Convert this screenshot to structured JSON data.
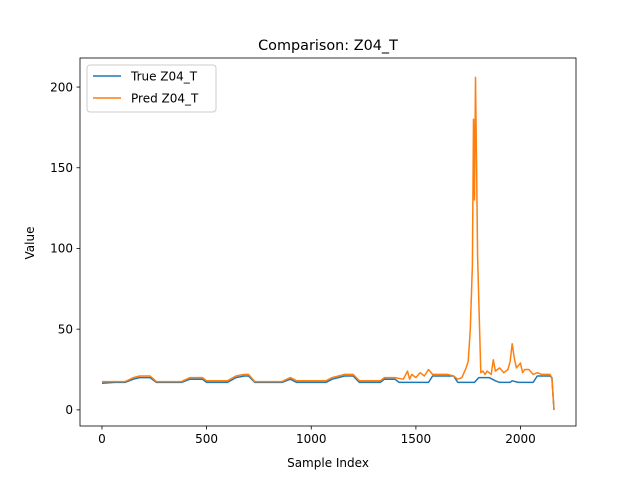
{
  "chart_data": {
    "type": "line",
    "title": "Comparison: Z04_T",
    "xlabel": "Sample Index",
    "ylabel": "Value",
    "xlim": [
      -105,
      2265
    ],
    "ylim": [
      -10,
      218
    ],
    "xticks": [
      0,
      500,
      1000,
      1500,
      2000
    ],
    "yticks": [
      0,
      50,
      100,
      150,
      200
    ],
    "legend": "top-left",
    "grid": false,
    "series": [
      {
        "name": "True Z04_T",
        "color": "#1f77b4",
        "x": [
          0,
          60,
          110,
          150,
          180,
          230,
          260,
          380,
          420,
          480,
          500,
          600,
          640,
          680,
          700,
          730,
          860,
          900,
          930,
          960,
          1040,
          1070,
          1100,
          1160,
          1200,
          1230,
          1330,
          1350,
          1400,
          1420,
          1500,
          1560,
          1580,
          1600,
          1680,
          1700,
          1720,
          1750,
          1780,
          1800,
          1820,
          1850,
          1880,
          1900,
          1950,
          1960,
          1990,
          2000,
          2060,
          2080,
          2140,
          2150,
          2160
        ],
        "y": [
          16.5,
          17,
          17,
          19,
          20,
          20,
          17,
          17,
          19,
          19,
          17,
          17,
          20,
          21,
          21,
          17,
          17,
          19,
          17,
          17,
          17,
          17,
          19,
          21,
          21,
          17,
          17,
          19,
          19,
          17,
          17,
          17,
          21,
          21,
          21,
          17,
          17,
          17,
          17,
          20,
          20,
          20,
          18,
          17,
          17,
          18,
          17,
          17,
          17,
          21,
          21,
          20,
          0
        ]
      },
      {
        "name": "Pred Z04_T",
        "color": "#ff7f0e",
        "x": [
          0,
          60,
          110,
          150,
          180,
          230,
          260,
          380,
          420,
          480,
          500,
          600,
          640,
          680,
          700,
          730,
          860,
          900,
          930,
          960,
          1040,
          1070,
          1100,
          1160,
          1200,
          1230,
          1330,
          1350,
          1400,
          1440,
          1460,
          1470,
          1480,
          1500,
          1520,
          1540,
          1560,
          1580,
          1600,
          1650,
          1680,
          1700,
          1720,
          1740,
          1750,
          1760,
          1770,
          1775,
          1780,
          1785,
          1790,
          1795,
          1800,
          1810,
          1820,
          1830,
          1840,
          1860,
          1870,
          1880,
          1900,
          1920,
          1940,
          1950,
          1960,
          1970,
          1980,
          2000,
          2010,
          2020,
          2040,
          2060,
          2080,
          2100,
          2140,
          2150,
          2160
        ],
        "y": [
          17.5,
          17.5,
          17.5,
          20,
          21,
          21,
          17.5,
          17.5,
          20,
          20,
          18,
          18,
          21,
          22,
          22,
          17.5,
          17.5,
          20,
          18,
          18,
          18,
          18,
          20,
          22,
          22,
          18,
          18,
          20,
          20,
          19,
          24,
          19,
          22,
          20,
          23,
          21,
          25,
          22,
          22,
          22,
          21,
          19,
          20,
          26,
          30,
          50,
          90,
          180,
          130,
          206,
          150,
          95,
          70,
          23,
          24,
          22,
          24,
          22,
          31,
          24,
          26,
          23,
          25,
          30,
          41,
          32,
          26,
          29,
          23,
          25,
          25,
          22,
          23,
          22,
          22,
          20,
          0
        ]
      }
    ]
  }
}
